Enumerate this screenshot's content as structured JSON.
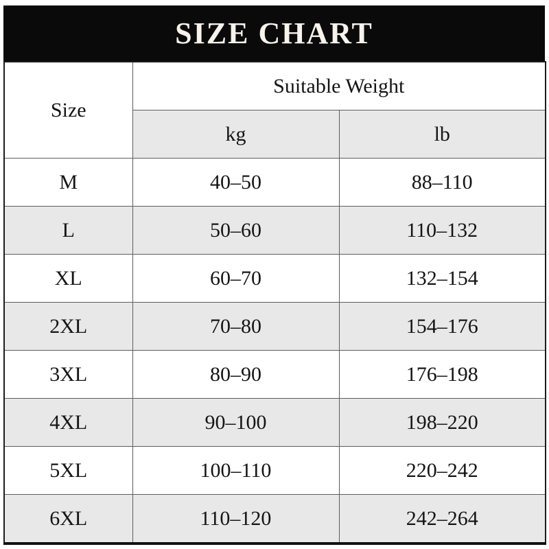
{
  "title": "SIZE CHART",
  "table": {
    "size_header": "Size",
    "weight_header": "Suitable Weight",
    "unit_kg": "kg",
    "unit_lb": "lb",
    "rows": [
      {
        "size": "M",
        "kg": "40–50",
        "lb": "88–110"
      },
      {
        "size": "L",
        "kg": "50–60",
        "lb": "110–132"
      },
      {
        "size": "XL",
        "kg": "60–70",
        "lb": "132–154"
      },
      {
        "size": "2XL",
        "kg": "70–80",
        "lb": "154–176"
      },
      {
        "size": "3XL",
        "kg": "80–90",
        "lb": "176–198"
      },
      {
        "size": "4XL",
        "kg": "90–100",
        "lb": "198–220"
      },
      {
        "size": "5XL",
        "kg": "100–110",
        "lb": "220–242"
      },
      {
        "size": "6XL",
        "kg": "110–120",
        "lb": "242–264"
      }
    ]
  },
  "colors": {
    "banner_background": "#0a0a0a",
    "banner_text": "#f7f3ec",
    "stripe_row": "#e8e8e8",
    "grid_line": "#5c5c5c",
    "text": "#141414"
  }
}
